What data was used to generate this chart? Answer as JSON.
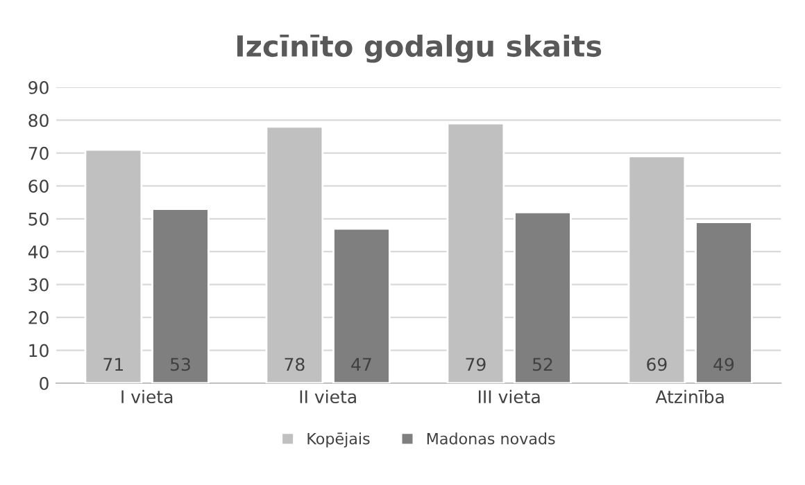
{
  "chart_data": {
    "type": "bar",
    "title": "Izcīnīto godalgu skaits",
    "categories": [
      "I vieta",
      "II vieta",
      "III vieta",
      "Atzinība"
    ],
    "series": [
      {
        "name": "Kopējais",
        "color": "#c0c0c0",
        "values": [
          71,
          78,
          79,
          69
        ]
      },
      {
        "name": "Madonas novads",
        "color": "#7f7f7f",
        "values": [
          53,
          47,
          52,
          49
        ]
      }
    ],
    "ylim": [
      0,
      90
    ],
    "yticks": [
      0,
      10,
      20,
      30,
      40,
      50,
      60,
      70,
      80,
      90
    ],
    "grid": "y",
    "legend": "bottom",
    "data_labels": true
  }
}
